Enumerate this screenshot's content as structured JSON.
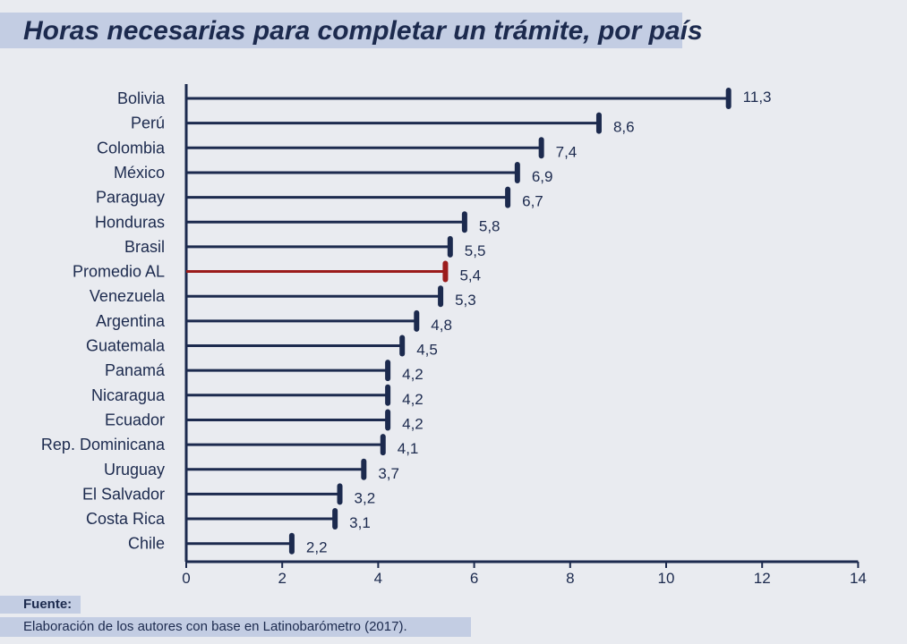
{
  "chart_data": {
    "type": "bar",
    "title": "Horas necesarias para completar un trámite, por país",
    "categories": [
      "Bolivia",
      "Perú",
      "Colombia",
      "México",
      "Paraguay",
      "Honduras",
      "Brasil",
      "Promedio AL",
      "Venezuela",
      "Argentina",
      "Guatemala",
      "Panamá",
      "Nicaragua",
      "Ecuador",
      "Rep. Dominicana",
      "Uruguay",
      "El Salvador",
      "Costa Rica",
      "Chile"
    ],
    "values": [
      11.3,
      8.6,
      7.4,
      6.9,
      6.7,
      5.8,
      5.5,
      5.4,
      5.3,
      4.8,
      4.5,
      4.2,
      4.2,
      4.2,
      4.1,
      3.7,
      3.2,
      3.1,
      2.2
    ],
    "value_labels": [
      "11,3",
      "8,6",
      "7,4",
      "6,9",
      "6,7",
      "5,8",
      "5,5",
      "5,4",
      "5,3",
      "4,8",
      "4,5",
      "4,2",
      "4,2",
      "4,2",
      "4,1",
      "3,7",
      "3,2",
      "3,1",
      "2,2"
    ],
    "highlight": "Promedio AL",
    "xlim": [
      0,
      14
    ],
    "xticks": [
      0,
      2,
      4,
      6,
      8,
      10,
      12,
      14
    ],
    "grid": false,
    "orientation": "horizontal",
    "colors": {
      "bar": "#1c2a4e",
      "highlight": "#9b1b1b",
      "text": "#1c2a4e"
    }
  },
  "source": {
    "label": "Fuente:",
    "text": "Elaboración de los autores con base en Latinobarómetro (2017)."
  }
}
